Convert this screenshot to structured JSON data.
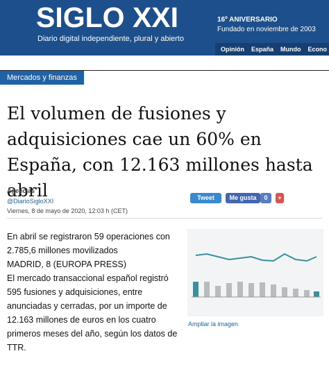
{
  "header": {
    "logo": "SIGLO XXI",
    "tagline": "Diario digital independiente, plural y abierto",
    "anniversary": "16º ANIVERSARIO",
    "founded": "Fundado en noviembre de 2003",
    "nav": [
      "Opinión",
      "España",
      "Mundo",
      "Econo"
    ]
  },
  "section": "Mercados y finanzas",
  "article": {
    "title": "El volumen de fusiones y adquisiciones cae un 60% en España, con 12.163 millones hasta abril",
    "author": "Agencias",
    "handle": "@DiarioSigloXXI",
    "date": "Viernes, 8 de mayo de 2020, 12:03 h (CET)",
    "share": {
      "tweet": "Tweet",
      "like": "Me gusta",
      "like_count": "0",
      "plus": "+"
    },
    "paragraphs": [
      "En abril se registraron 59 operaciones con 2.785,6 millones movilizados",
      "MADRID, 8 (EUROPA PRESS)",
      "El mercado transaccional español registró 595 fusiones y adquisiciones, entre anunciadas y cerradas, por un importe de 12.163 millones de euros en los cuatro primeros meses del año, según los datos de TTR."
    ],
    "image_caption": "Ampliar la imagen"
  }
}
